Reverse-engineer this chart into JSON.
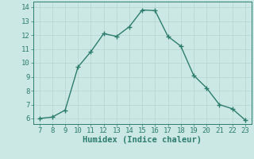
{
  "x": [
    7,
    8,
    9,
    10,
    11,
    12,
    13,
    14,
    15,
    16,
    17,
    18,
    19,
    20,
    21,
    22,
    23
  ],
  "y": [
    6.0,
    6.1,
    6.6,
    9.7,
    10.8,
    12.1,
    11.9,
    12.6,
    13.8,
    13.75,
    11.9,
    11.2,
    9.1,
    8.2,
    7.0,
    6.7,
    5.9
  ],
  "line_color": "#2d7d6e",
  "marker_color": "#2d7d6e",
  "bg_color": "#cce8e4",
  "grid_color": "#b8d8d4",
  "xlabel": "Humidex (Indice chaleur)",
  "xlim_min": 6.5,
  "xlim_max": 23.5,
  "ylim_min": 5.6,
  "ylim_max": 14.4,
  "xticks": [
    7,
    8,
    9,
    10,
    11,
    12,
    13,
    14,
    15,
    16,
    17,
    18,
    19,
    20,
    21,
    22,
    23
  ],
  "yticks": [
    6,
    7,
    8,
    9,
    10,
    11,
    12,
    13,
    14
  ],
  "xlabel_fontsize": 7.5,
  "tick_fontsize": 6.5,
  "line_width": 1.0,
  "marker_size": 2.5
}
